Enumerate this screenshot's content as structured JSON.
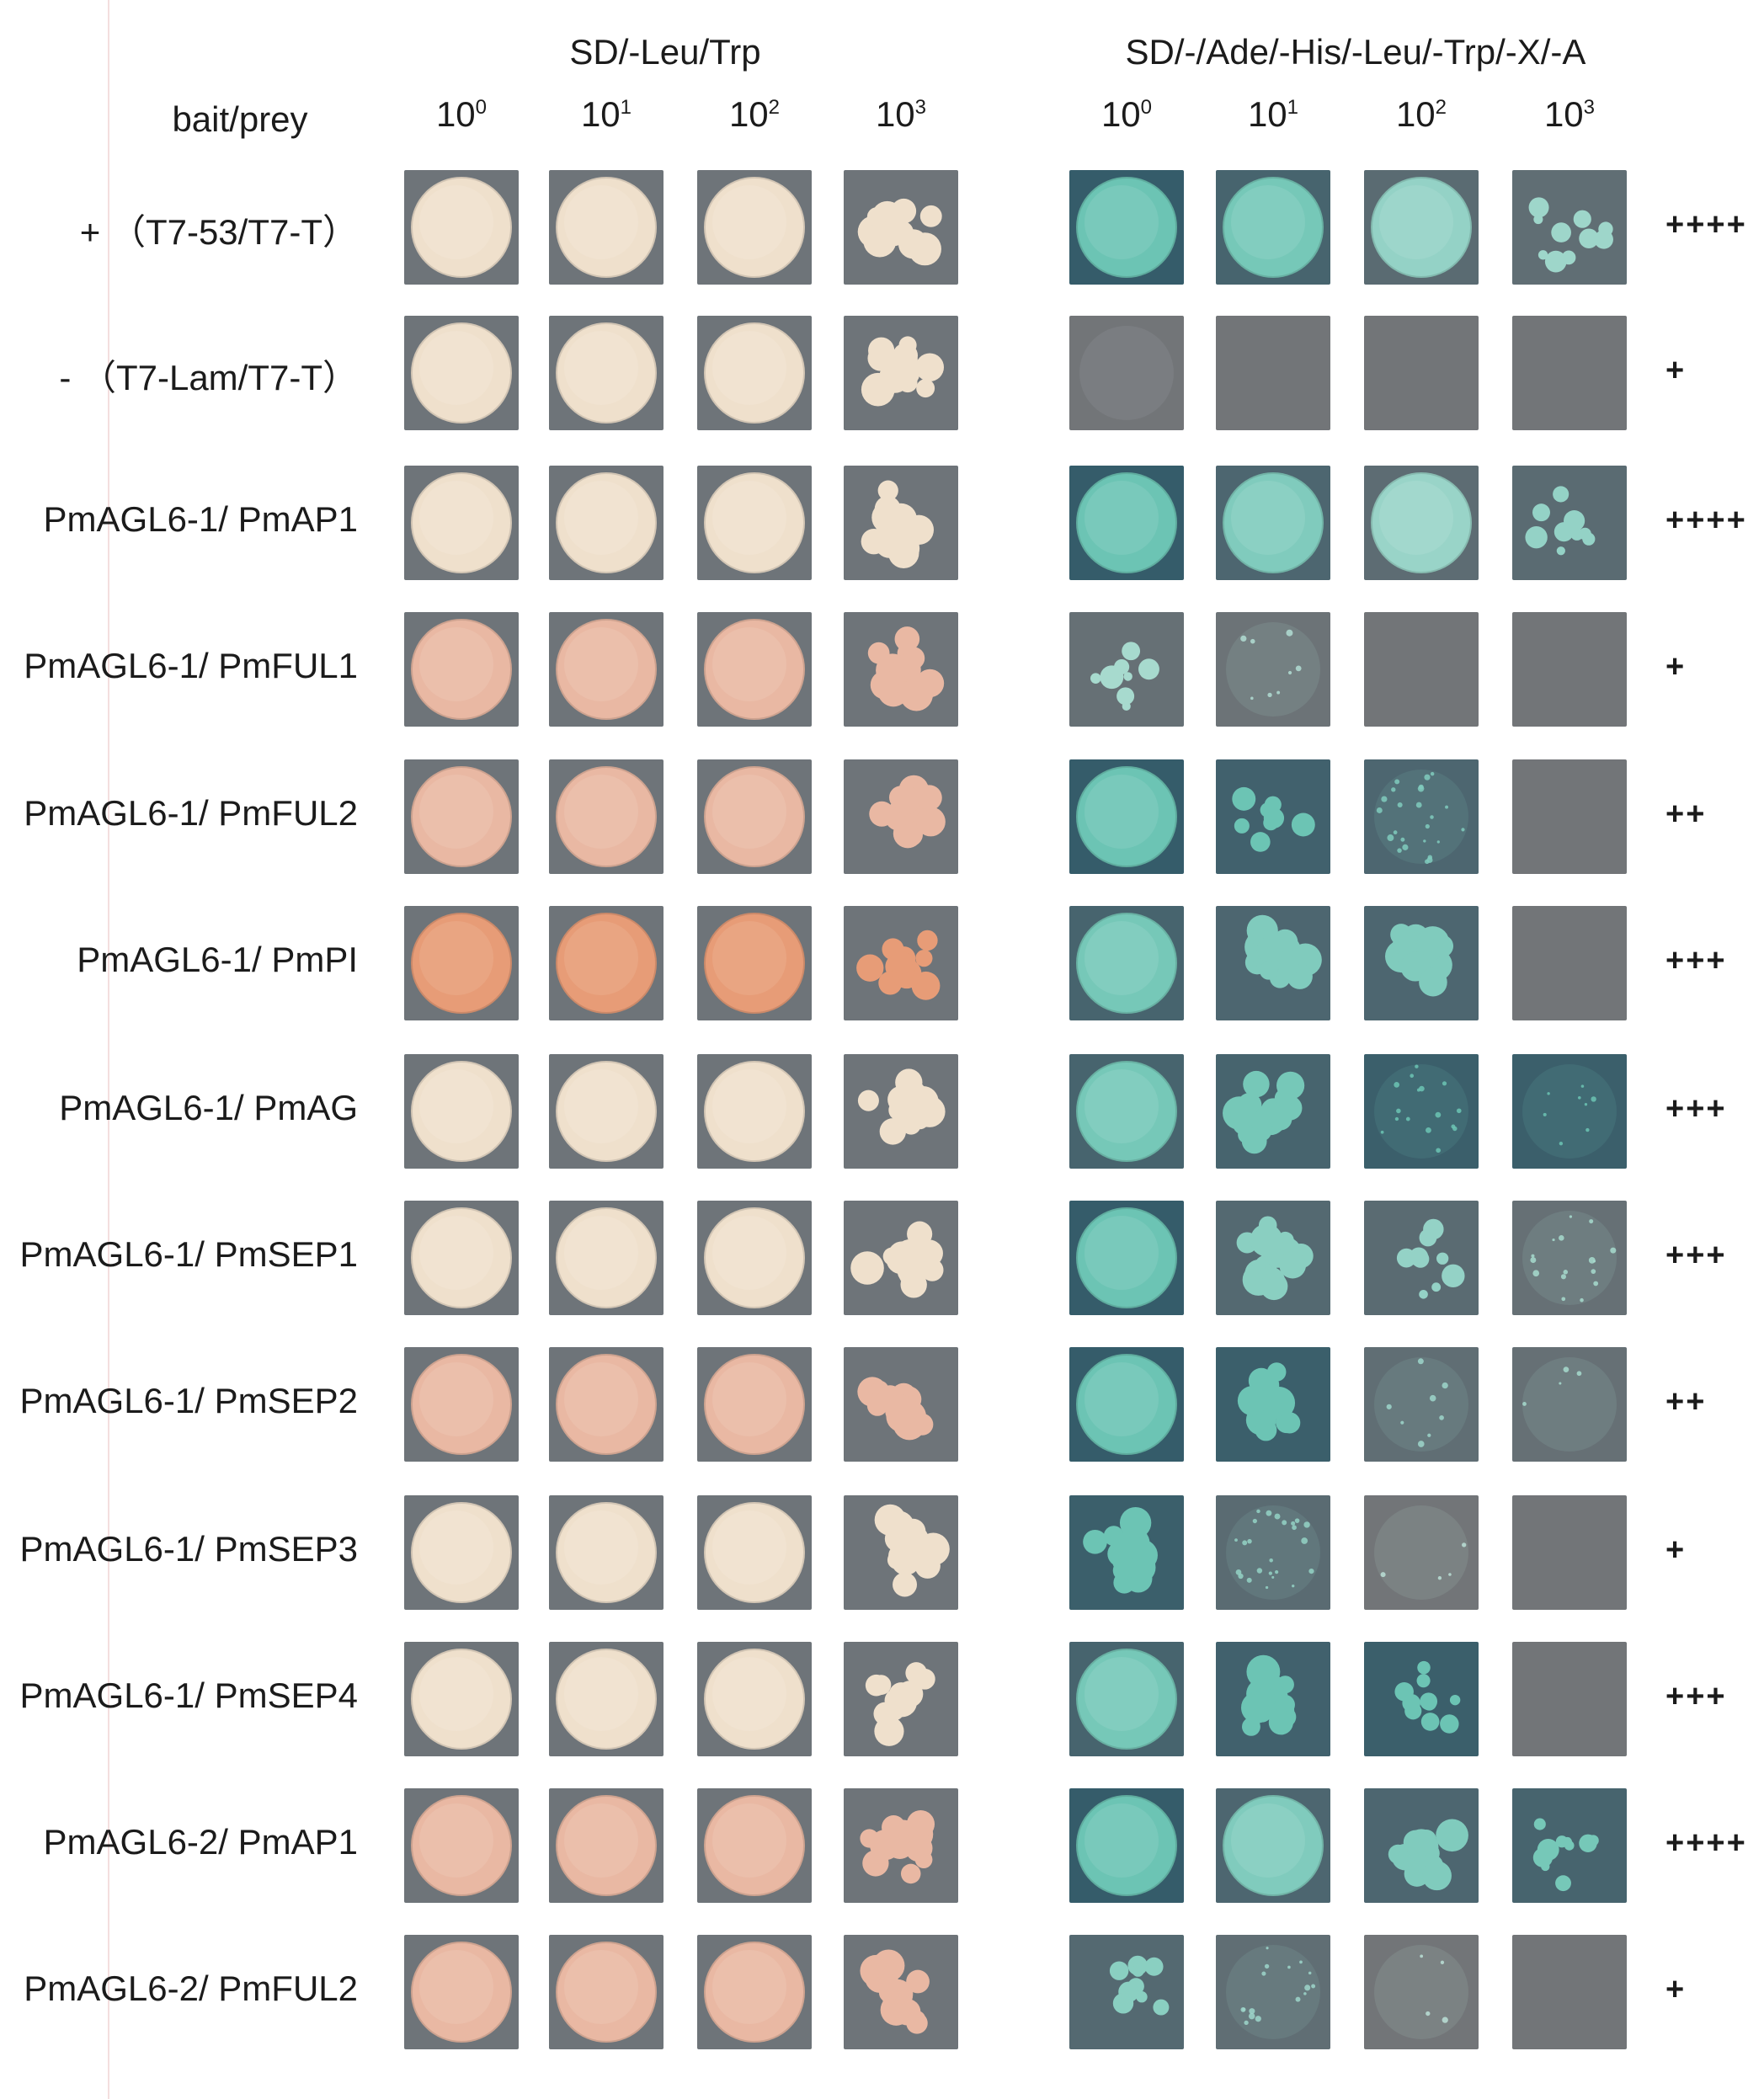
{
  "headers": {
    "bait_prey": "bait/prey",
    "group1": "SD/-Leu/Trp",
    "group2": "SD/-/Ade/-His/-Leu/-Trp/-X/-A",
    "dilution_base": "10",
    "dilution_exponents": [
      "0",
      "1",
      "2",
      "3"
    ]
  },
  "rows": [
    {
      "label": "+ （T7-53/T7-T）",
      "score": "++++",
      "sd2_growth": [
        1,
        0.95,
        0.8,
        0.35
      ],
      "sd2_blue": [
        1,
        0.7,
        0.4,
        0.3
      ]
    },
    {
      "label": "- （T7-Lam/T7-T）",
      "score": "+",
      "sd2_growth": [
        0,
        0,
        0,
        0
      ],
      "sd2_blue": [
        0,
        0,
        0,
        0
      ]
    },
    {
      "label": "PmAGL6-1/ PmAP1",
      "score": "++++",
      "sd2_growth": [
        1,
        0.95,
        0.8,
        0.4
      ],
      "sd2_blue": [
        1,
        0.6,
        0.35,
        0.4
      ]
    },
    {
      "label": "PmAGL6-1/ PmFUL1",
      "score": "+",
      "sd2_growth": [
        0.2,
        0.05,
        0,
        0
      ],
      "sd2_blue": [
        0.2,
        0.1,
        0,
        0
      ]
    },
    {
      "label": "PmAGL6-1/ PmFUL2",
      "score": "++",
      "sd2_growth": [
        0.9,
        0.4,
        0.15,
        0
      ],
      "sd2_blue": [
        1,
        0.8,
        0.6,
        0
      ]
    },
    {
      "label": "PmAGL6-1/  PmPI",
      "score": "+++",
      "sd2_growth": [
        0.9,
        0.7,
        0.5,
        0
      ],
      "sd2_blue": [
        0.7,
        0.6,
        0.6,
        0
      ]
    },
    {
      "label": "PmAGL6-1/ PmAG",
      "score": "+++",
      "sd2_growth": [
        0.9,
        0.6,
        0.1,
        0.05
      ],
      "sd2_blue": [
        0.7,
        0.7,
        0.9,
        0.9
      ]
    },
    {
      "label": "PmAGL6-1/ PmSEP1",
      "score": "+++",
      "sd2_growth": [
        1,
        0.6,
        0.3,
        0.1
      ],
      "sd2_blue": [
        1,
        0.5,
        0.4,
        0.2
      ]
    },
    {
      "label": "PmAGL6-1/ PmSEP2",
      "score": "++",
      "sd2_growth": [
        0.9,
        0.5,
        0.05,
        0.02
      ],
      "sd2_blue": [
        1,
        0.9,
        0.3,
        0.2
      ]
    },
    {
      "label": "PmAGL6-1/ PmSEP3",
      "score": "+",
      "sd2_growth": [
        0.5,
        0.15,
        0.02,
        0
      ],
      "sd2_blue": [
        0.9,
        0.4,
        0,
        0
      ]
    },
    {
      "label": "PmAGL6-1/ PmSEP4",
      "score": "+++",
      "sd2_growth": [
        0.9,
        0.6,
        0.2,
        0
      ],
      "sd2_blue": [
        0.7,
        0.8,
        0.9,
        0
      ]
    },
    {
      "label": "PmAGL6-2/ PmAP1",
      "score": "++++",
      "sd2_growth": [
        1,
        0.9,
        0.7,
        0.25
      ],
      "sd2_blue": [
        1,
        0.6,
        0.6,
        0.7
      ]
    },
    {
      "label": "PmAGL6-2/ PmFUL2",
      "score": "+",
      "sd2_growth": [
        0.35,
        0.1,
        0.02,
        0
      ],
      "sd2_blue": [
        0.5,
        0.3,
        0,
        0
      ]
    }
  ],
  "colors": {
    "sd1_background": "#6e7479",
    "colony_cream": "#efe0cc",
    "colony_pink": "#e9b8a3",
    "colony_orange": "#e79c77",
    "sd2_background": "#355c6a",
    "sd2_gray": "#727578",
    "colony_blue": "#6cc4b4",
    "score_text": "#1b1b1b"
  }
}
